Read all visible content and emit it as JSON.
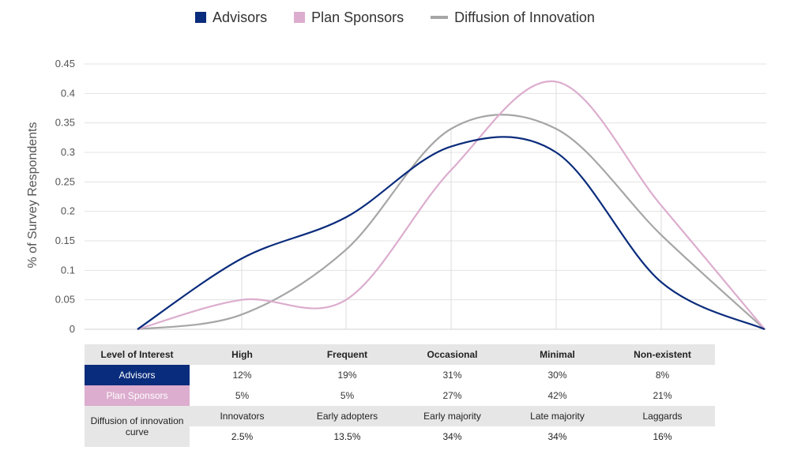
{
  "legend": {
    "advisors": "Advisors",
    "plan_sponsors": "Plan Sponsors",
    "diffusion": "Diffusion of Innovation"
  },
  "colors": {
    "advisors": "#0a2c7c",
    "plan_sponsors": "#dcadce",
    "diffusion": "#a6a6a6",
    "grid": "#e3e3e3"
  },
  "chart_data": {
    "type": "line",
    "ylabel": "% of Survey Respondents",
    "xlabel": "",
    "ylim": [
      0,
      0.45
    ],
    "y_ticks": [
      "0",
      "0.05",
      "0.1",
      "0.15",
      "0.2",
      "0.25",
      "0.3",
      "0.35",
      "0.4",
      "0.45"
    ],
    "grid": true,
    "legend_position": "top",
    "smooth": true,
    "x": [
      "",
      "High",
      "Frequent",
      "Occasional",
      "Minimal",
      "Non-existent",
      ""
    ],
    "series": [
      {
        "name": "Advisors",
        "values": [
          0,
          0.12,
          0.19,
          0.31,
          0.3,
          0.08,
          0
        ]
      },
      {
        "name": "Plan Sponsors",
        "values": [
          0,
          0.05,
          0.05,
          0.27,
          0.42,
          0.21,
          0
        ]
      },
      {
        "name": "Diffusion of Innovation",
        "values": [
          0,
          0.025,
          0.135,
          0.34,
          0.34,
          0.16,
          0
        ]
      }
    ]
  },
  "table": {
    "header": {
      "label": "Level of Interest",
      "categories": [
        "High",
        "Frequent",
        "Occasional",
        "Minimal",
        "Non-existent"
      ]
    },
    "advisors": {
      "label": "Advisors",
      "values": [
        "12%",
        "19%",
        "31%",
        "30%",
        "8%"
      ]
    },
    "plan_sponsors": {
      "label": "Plan Sponsors",
      "values": [
        "5%",
        "5%",
        "27%",
        "42%",
        "21%"
      ]
    },
    "diffusion": {
      "label": "Diffusion of innovation curve",
      "categories": [
        "Innovators",
        "Early adopters",
        "Early majority",
        "Late majority",
        "Laggards"
      ],
      "values": [
        "2.5%",
        "13.5%",
        "34%",
        "34%",
        "16%"
      ]
    }
  }
}
